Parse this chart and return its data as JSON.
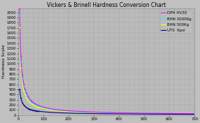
{
  "title": "Vickers & Brinell Hardness Conversion Chart",
  "ylabel": "Hardness Scale",
  "xlabel": "",
  "bg_color": "#c0c0c0",
  "plot_bg_color": "#c0c0c0",
  "grid_color": "#999999",
  "ylim": [
    0,
    2080
  ],
  "xlim": [
    0,
    700
  ],
  "yticks": [
    0,
    100,
    200,
    300,
    400,
    500,
    600,
    700,
    800,
    900,
    1000,
    1100,
    1200,
    1300,
    1400,
    1500,
    1600,
    1700,
    1800,
    1900,
    2000
  ],
  "xticks": [
    0,
    100,
    200,
    300,
    400,
    500,
    600,
    700
  ],
  "legend": [
    {
      "label": "UTS  Kpsi",
      "color": "#00008b",
      "linestyle": "-"
    },
    {
      "label": "DPH HV30",
      "color": "#ff00ff",
      "linestyle": "-"
    },
    {
      "label": "BHN 500Kg",
      "color": "#ffff00",
      "linestyle": "-"
    },
    {
      "label": "BHN 3000Kg",
      "color": "#00ffff",
      "linestyle": "-"
    }
  ],
  "title_fontsize": 5.5,
  "axis_fontsize": 4.5,
  "tick_fontsize": 3.8,
  "legend_fontsize": 4.0
}
